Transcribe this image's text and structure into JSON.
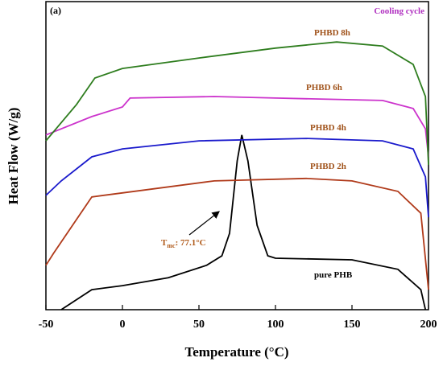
{
  "chart_data": {
    "type": "line",
    "panel_label": "(a)",
    "subtitle": "Cooling cycle",
    "xlabel": "Temperature (°C)",
    "ylabel": "Heat Flow (W/g)",
    "xlim": [
      -50,
      200
    ],
    "xticks": [
      -50,
      0,
      50,
      100,
      150,
      200
    ],
    "ylim": [
      0,
      100
    ],
    "annotation": {
      "symbol": "T",
      "subscript": "mc",
      "text": ": 77.1°C"
    },
    "series": [
      {
        "name": "pure PHB",
        "color": "#000000",
        "x": [
          -40,
          -20,
          0,
          30,
          55,
          65,
          70,
          75,
          78,
          82,
          88,
          95,
          100,
          150,
          180,
          195,
          198
        ],
        "values": [
          0,
          6.5,
          7.8,
          10.4,
          14.4,
          17.5,
          24.8,
          48.3,
          56.7,
          48.3,
          27.4,
          17.5,
          16.7,
          16.2,
          13.1,
          6.5,
          0
        ]
      },
      {
        "name": "PHBD 2h",
        "color": "#b03a1a",
        "x": [
          -50,
          -45,
          -20,
          0,
          60,
          120,
          150,
          180,
          195,
          200
        ],
        "values": [
          14.4,
          18.3,
          36.6,
          37.9,
          41.8,
          42.6,
          41.8,
          38.4,
          31.3,
          6.5
        ]
      },
      {
        "name": "PHBD 4h",
        "color": "#1a1acc",
        "x": [
          -50,
          -40,
          -20,
          0,
          50,
          120,
          170,
          190,
          198,
          200
        ],
        "values": [
          37.1,
          41.8,
          49.6,
          52.2,
          54.8,
          55.6,
          54.8,
          52.2,
          43.1,
          30.0
        ]
      },
      {
        "name": "PHBD 6h",
        "color": "#cc33cc",
        "x": [
          -50,
          -20,
          0,
          5,
          60,
          100,
          170,
          190,
          198,
          200
        ],
        "values": [
          56.7,
          62.7,
          65.8,
          68.7,
          69.2,
          68.7,
          67.9,
          65.3,
          58.7,
          49.6
        ]
      },
      {
        "name": "PHBD 8h",
        "color": "#2e7d1e",
        "x": [
          -50,
          -30,
          -18,
          0,
          50,
          100,
          140,
          170,
          190,
          198,
          200
        ],
        "values": [
          54.8,
          66.6,
          75.2,
          78.3,
          81.7,
          84.9,
          86.9,
          85.6,
          79.6,
          69.2,
          47.0
        ]
      }
    ]
  }
}
